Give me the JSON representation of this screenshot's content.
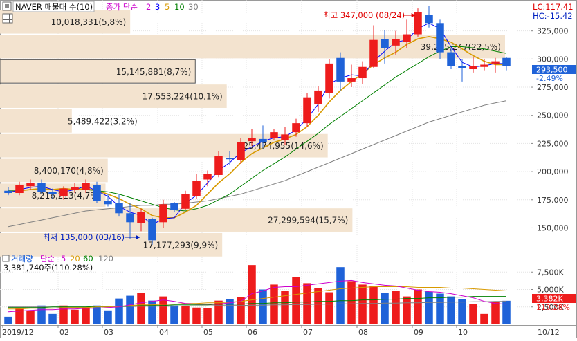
{
  "header": {
    "title": "NAVER 매물대 수(10)",
    "ma_label": "종가 단순",
    "ma_periods": [
      "2",
      "3",
      "5",
      "10",
      "30"
    ],
    "ma_colors": [
      "#cc00cc",
      "#0000ff",
      "#d89a00",
      "#008000",
      "#808080"
    ]
  },
  "price_panel": {
    "lc_label": "LC:117.41",
    "hc_label": "HC:-15.42",
    "y_ticks": [
      "325,000",
      "300,000",
      "275,000",
      "250,000",
      "225,000",
      "200,000",
      "175,000",
      "150,000"
    ],
    "current_price": "293,500",
    "current_change": "-2.49%",
    "high_label": "최고 347,000 (08/24)",
    "low_label": "최저 135,000 (03/16)"
  },
  "volume_panel": {
    "title": "거래량",
    "ma_label": "단순",
    "ma_periods": [
      "5",
      "20",
      "60",
      "120"
    ],
    "ma_colors": [
      "#cc00cc",
      "#d89a00",
      "#008000",
      "#808080"
    ],
    "info": "3,381,740주(110.28%)",
    "y_ticks": [
      "7,500K",
      "5,000K",
      "2,500K"
    ],
    "current_volume": "3,382K",
    "current_pct": "110.28%"
  },
  "x_axis": {
    "labels": [
      "2019/12",
      "02",
      "03",
      "04",
      "05",
      "06",
      "07",
      "08",
      "09",
      "10"
    ],
    "right_label": "10/12"
  },
  "colors": {
    "up": "#ee1c1c",
    "down": "#1f62d8",
    "profile": "#f3e3cf"
  },
  "chart_data": {
    "type": "candlestick",
    "title": "NAVER 매물대 수(10)",
    "ylim": [
      130000,
      350000
    ],
    "volume_ylim": [
      0,
      10000000
    ],
    "volume_profile": [
      {
        "label": "10,018,331(5,8%)",
        "price_low": 322000,
        "price_high": 344000,
        "pct": 5.8
      },
      {
        "label": "39,215,247(22,5%)",
        "price_low": 300000,
        "price_high": 322000,
        "pct": 22.5
      },
      {
        "label": "15,145,881(8,7%)",
        "price_low": 278000,
        "price_high": 300000,
        "pct": 8.7
      },
      {
        "label": "17,553,224(10,1%)",
        "price_low": 256000,
        "price_high": 278000,
        "pct": 10.1
      },
      {
        "label": "5,489,422(3,2%)",
        "price_low": 234000,
        "price_high": 256000,
        "pct": 3.2
      },
      {
        "label": "25,474,955(14,6%)",
        "price_low": 212000,
        "price_high": 234000,
        "pct": 14.6
      },
      {
        "label": "8,400,170(4,8%)",
        "price_low": 190000,
        "price_high": 212000,
        "pct": 4.8
      },
      {
        "label": "8,216,213(4,7%)",
        "price_low": 168000,
        "price_high": 190000,
        "pct": 4.7
      },
      {
        "label": "27,299,594(15,7%)",
        "price_low": 146000,
        "price_high": 168000,
        "pct": 15.7
      },
      {
        "label": "17,177,293(9,9%)",
        "price_low": 124000,
        "price_high": 146000,
        "pct": 9.9
      }
    ],
    "candles": [
      {
        "o": 183000,
        "h": 186000,
        "l": 179000,
        "c": 181000,
        "v": 1100000
      },
      {
        "o": 181000,
        "h": 191000,
        "l": 179000,
        "c": 188000,
        "v": 2300000
      },
      {
        "o": 187000,
        "h": 193000,
        "l": 184000,
        "c": 190000,
        "v": 2000000
      },
      {
        "o": 190000,
        "h": 193000,
        "l": 180000,
        "c": 182000,
        "v": 2700000
      },
      {
        "o": 182000,
        "h": 185000,
        "l": 176000,
        "c": 180000,
        "v": 1500000
      },
      {
        "o": 178000,
        "h": 187000,
        "l": 175000,
        "c": 185000,
        "v": 2700000
      },
      {
        "o": 184000,
        "h": 190000,
        "l": 181000,
        "c": 186000,
        "v": 2100000
      },
      {
        "o": 184000,
        "h": 193000,
        "l": 181000,
        "c": 190000,
        "v": 2500000
      },
      {
        "o": 188000,
        "h": 191000,
        "l": 172000,
        "c": 174000,
        "v": 2700000
      },
      {
        "o": 174000,
        "h": 180000,
        "l": 169000,
        "c": 171000,
        "v": 2000000
      },
      {
        "o": 172000,
        "h": 180000,
        "l": 160000,
        "c": 163000,
        "v": 3700000
      },
      {
        "o": 163000,
        "h": 172000,
        "l": 140000,
        "c": 155000,
        "v": 4100000
      },
      {
        "o": 154000,
        "h": 167000,
        "l": 147000,
        "c": 164000,
        "v": 4500000
      },
      {
        "o": 158000,
        "h": 159000,
        "l": 135000,
        "c": 139000,
        "v": 3400000
      },
      {
        "o": 155000,
        "h": 175000,
        "l": 150000,
        "c": 171000,
        "v": 4000000
      },
      {
        "o": 172000,
        "h": 173000,
        "l": 164000,
        "c": 166000,
        "v": 2700000
      },
      {
        "o": 167000,
        "h": 183000,
        "l": 166000,
        "c": 180000,
        "v": 2600000
      },
      {
        "o": 178000,
        "h": 198000,
        "l": 176000,
        "c": 192000,
        "v": 2400000
      },
      {
        "o": 193000,
        "h": 201000,
        "l": 187000,
        "c": 198000,
        "v": 2300000
      },
      {
        "o": 197000,
        "h": 218000,
        "l": 195000,
        "c": 214000,
        "v": 3400000
      },
      {
        "o": 212000,
        "h": 218000,
        "l": 206000,
        "c": 211000,
        "v": 3600000
      },
      {
        "o": 210000,
        "h": 230000,
        "l": 207000,
        "c": 226000,
        "v": 3900000
      },
      {
        "o": 227000,
        "h": 238000,
        "l": 223000,
        "c": 230000,
        "v": 8500000
      },
      {
        "o": 229000,
        "h": 241000,
        "l": 220000,
        "c": 226000,
        "v": 5000000
      },
      {
        "o": 230000,
        "h": 238000,
        "l": 228000,
        "c": 235000,
        "v": 5700000
      },
      {
        "o": 228000,
        "h": 240000,
        "l": 224000,
        "c": 233000,
        "v": 4800000
      },
      {
        "o": 235000,
        "h": 247000,
        "l": 231000,
        "c": 243000,
        "v": 6800000
      },
      {
        "o": 243000,
        "h": 270000,
        "l": 240000,
        "c": 266000,
        "v": 5900000
      },
      {
        "o": 260000,
        "h": 276000,
        "l": 253000,
        "c": 272000,
        "v": 5200000
      },
      {
        "o": 270000,
        "h": 300000,
        "l": 265000,
        "c": 296000,
        "v": 4600000
      },
      {
        "o": 301000,
        "h": 306000,
        "l": 272000,
        "c": 280000,
        "v": 8200000
      },
      {
        "o": 280000,
        "h": 295000,
        "l": 275000,
        "c": 283000,
        "v": 6200000
      },
      {
        "o": 283000,
        "h": 298000,
        "l": 278000,
        "c": 293000,
        "v": 5700000
      },
      {
        "o": 293000,
        "h": 330000,
        "l": 292000,
        "c": 317000,
        "v": 5500000
      },
      {
        "o": 318000,
        "h": 326000,
        "l": 296000,
        "c": 310000,
        "v": 4500000
      },
      {
        "o": 312000,
        "h": 325000,
        "l": 304000,
        "c": 318000,
        "v": 4800000
      },
      {
        "o": 315000,
        "h": 335000,
        "l": 310000,
        "c": 322000,
        "v": 4000000
      },
      {
        "o": 322000,
        "h": 345000,
        "l": 320000,
        "c": 342000,
        "v": 5000000
      },
      {
        "o": 339000,
        "h": 347000,
        "l": 328000,
        "c": 332000,
        "v": 4700000
      },
      {
        "o": 332000,
        "h": 335000,
        "l": 300000,
        "c": 306000,
        "v": 4400000
      },
      {
        "o": 306000,
        "h": 310000,
        "l": 291000,
        "c": 294000,
        "v": 4000000
      },
      {
        "o": 294000,
        "h": 300000,
        "l": 280000,
        "c": 292000,
        "v": 3600000
      },
      {
        "o": 291000,
        "h": 302000,
        "l": 288000,
        "c": 294000,
        "v": 2900000
      },
      {
        "o": 293000,
        "h": 300000,
        "l": 290000,
        "c": 295000,
        "v": 1500000
      },
      {
        "o": 296000,
        "h": 301000,
        "l": 288000,
        "c": 298000,
        "v": 3200000
      },
      {
        "o": 301000,
        "h": 302000,
        "l": 290000,
        "c": 293500,
        "v": 3381740
      }
    ],
    "ma_price": {
      "ma3": [
        181000,
        184000,
        186000,
        187000,
        184000,
        182000,
        184000,
        187000,
        183000,
        178000,
        169000,
        164000,
        161000,
        153000,
        158000,
        159000,
        172000,
        179000,
        190000,
        201000,
        208000,
        217000,
        222000,
        227000,
        230000,
        231000,
        237000,
        247000,
        260000,
        278000,
        283000,
        286000,
        285000,
        298000,
        307000,
        315000,
        317000,
        327000,
        332000,
        327000,
        311000,
        297000,
        293000,
        294000,
        296000,
        296000
      ],
      "ma5": [
        182000,
        183000,
        184000,
        185000,
        184000,
        185000,
        184000,
        185000,
        183000,
        180000,
        176000,
        171000,
        167000,
        161000,
        159000,
        159000,
        164000,
        170000,
        180000,
        190000,
        198000,
        208000,
        216000,
        221000,
        226000,
        229000,
        233000,
        240000,
        250000,
        262000,
        272000,
        280000,
        287000,
        295000,
        301000,
        306000,
        313000,
        318000,
        320000,
        318000,
        315000,
        309000,
        303000,
        298000,
        295000,
        295000
      ],
      "ma10": [
        183000,
        183000,
        184000,
        184000,
        184000,
        184000,
        184000,
        184000,
        183000,
        182000,
        180000,
        177000,
        174000,
        171000,
        168000,
        166000,
        165000,
        167000,
        170000,
        175000,
        180000,
        187000,
        194000,
        201000,
        207000,
        213000,
        220000,
        227000,
        234000,
        242000,
        249000,
        256000,
        263000,
        270000,
        277000,
        284000,
        290000,
        296000,
        302000,
        307000,
        311000,
        311000,
        310000,
        309000,
        307000,
        305000
      ],
      "ma30": [
        151000,
        153000,
        155000,
        157000,
        159000,
        161000,
        163000,
        165000,
        166000,
        167000,
        168000,
        169000,
        170000,
        170000,
        171000,
        171000,
        172000,
        173000,
        174000,
        176000,
        178000,
        180000,
        183000,
        186000,
        189000,
        192000,
        196000,
        200000,
        204000,
        208000,
        212000,
        216000,
        220000,
        224000,
        228000,
        232000,
        236000,
        240000,
        244000,
        247000,
        250000,
        253000,
        256000,
        259000,
        261000,
        263000
      ]
    },
    "ma_volume": {
      "ma5": [
        1800000,
        1900000,
        2000000,
        2100000,
        2100000,
        2200000,
        2200000,
        2300000,
        2300000,
        2400000,
        2500000,
        2800000,
        3100000,
        3300000,
        3500000,
        3300000,
        3000000,
        2900000,
        2900000,
        2900000,
        3100000,
        3300000,
        4400000,
        4800000,
        5300000,
        5400000,
        5400000,
        5600000,
        5800000,
        6000000,
        6200000,
        6300000,
        6000000,
        5800000,
        5600000,
        5500000,
        5200000,
        4900000,
        4700000,
        4600000,
        4400000,
        4100000,
        3800000,
        3300000,
        3000000,
        2900000
      ],
      "ma20": [
        2200000,
        2200000,
        2300000,
        2300000,
        2300000,
        2400000,
        2400000,
        2400000,
        2500000,
        2500000,
        2600000,
        2700000,
        2800000,
        2800000,
        2900000,
        2900000,
        3000000,
        3000000,
        3100000,
        3100000,
        3200000,
        3300000,
        3500000,
        3700000,
        3900000,
        4100000,
        4300000,
        4500000,
        4700000,
        4900000,
        5100000,
        5200000,
        5300000,
        5400000,
        5400000,
        5400000,
        5400000,
        5300000,
        5300000,
        5300000,
        5200000,
        5200000,
        5100000,
        5000000,
        4900000,
        4800000
      ],
      "ma60": [
        2400000,
        2400000,
        2400000,
        2400000,
        2500000,
        2500000,
        2500000,
        2500000,
        2600000,
        2600000,
        2600000,
        2600000,
        2700000,
        2700000,
        2700000,
        2800000,
        2800000,
        2800000,
        2800000,
        2900000,
        2900000,
        2900000,
        3000000,
        3000000,
        3100000,
        3100000,
        3200000,
        3200000,
        3300000,
        3300000,
        3400000,
        3400000,
        3500000,
        3500000,
        3600000,
        3600000,
        3700000,
        3700000,
        3800000,
        3800000,
        3900000,
        3900000,
        4000000,
        4000000,
        4000000,
        4000000
      ],
      "ma120": [
        2500000,
        2500000,
        2500000,
        2500000,
        2500000,
        2500000,
        2500000,
        2500000,
        2550000,
        2550000,
        2550000,
        2550000,
        2600000,
        2600000,
        2600000,
        2600000,
        2650000,
        2650000,
        2650000,
        2700000,
        2700000,
        2700000,
        2750000,
        2750000,
        2800000,
        2800000,
        2850000,
        2850000,
        2900000,
        2900000,
        2950000,
        2950000,
        3000000,
        3000000,
        3050000,
        3050000,
        3100000,
        3100000,
        3150000,
        3150000,
        3200000,
        3200000,
        3250000,
        3250000,
        3300000,
        3300000
      ]
    }
  }
}
